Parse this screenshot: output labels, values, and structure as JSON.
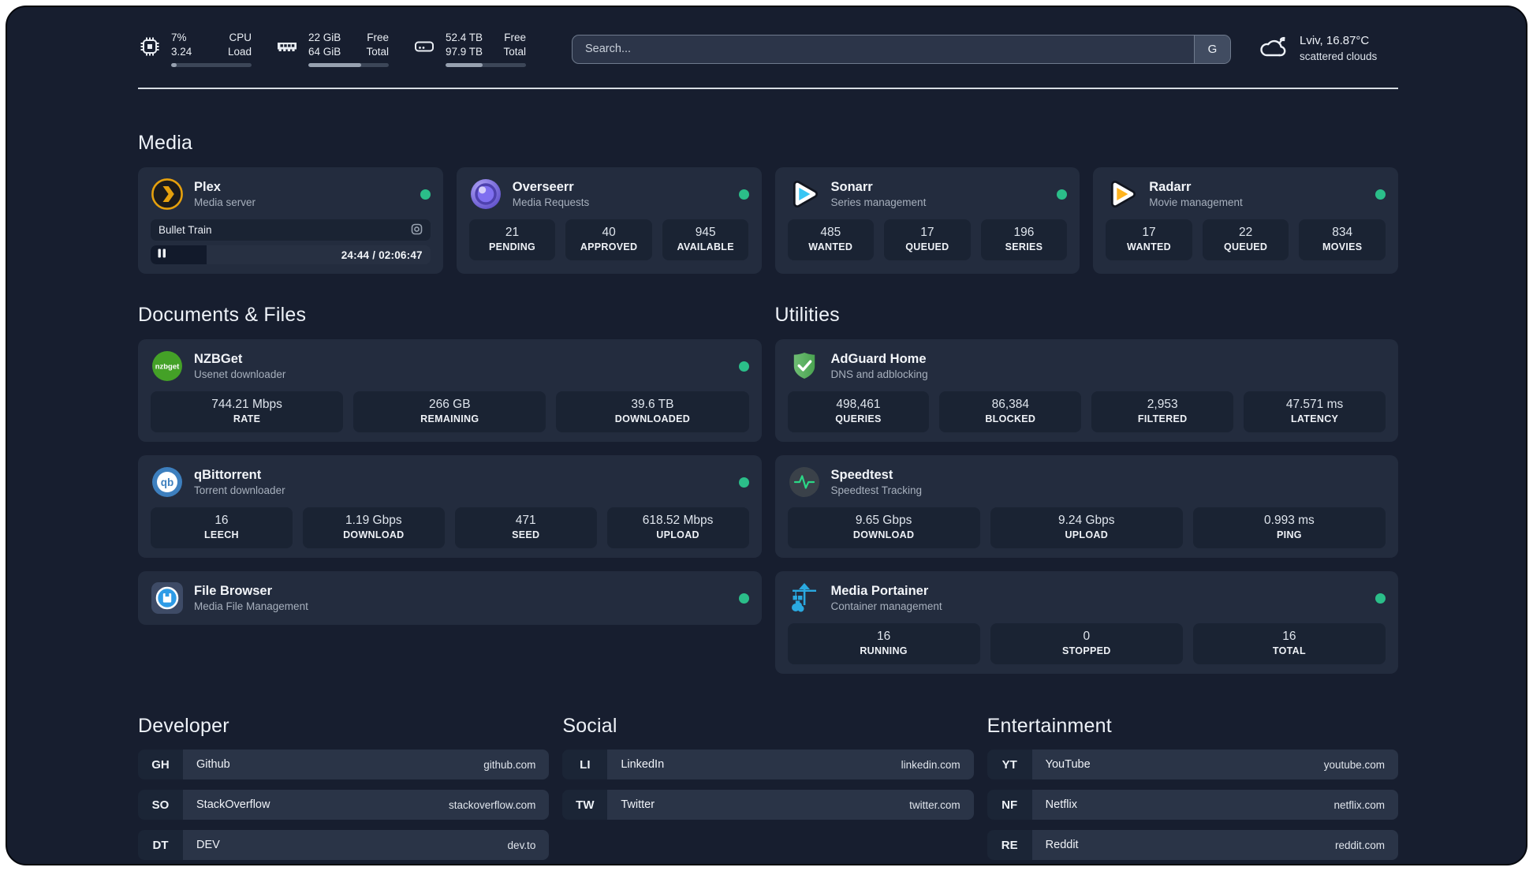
{
  "header": {
    "metrics": [
      {
        "icon": "cpu-icon",
        "col1": [
          "7%",
          "3.24"
        ],
        "col2": [
          "CPU",
          "Load"
        ],
        "progress": 7
      },
      {
        "icon": "ram-icon",
        "col1": [
          "22 GiB",
          "64 GiB"
        ],
        "col2": [
          "Free",
          "Total"
        ],
        "progress": 66
      },
      {
        "icon": "disk-icon",
        "col1": [
          "52.4 TB",
          "97.9 TB"
        ],
        "col2": [
          "Free",
          "Total"
        ],
        "progress": 46
      }
    ],
    "search": {
      "placeholder": "Search...",
      "engine_button": "G"
    },
    "weather": {
      "location": "Lviv, 16.87°C",
      "condition": "scattered clouds"
    }
  },
  "sections": {
    "media": {
      "title": "Media",
      "cards": [
        {
          "icon": "plex-icon",
          "name": "Plex",
          "subtitle": "Media server",
          "online": true,
          "player": {
            "title": "Bullet Train",
            "time": "24:44 / 02:06:47",
            "progress_percent": 20
          }
        },
        {
          "icon": "overseerr-icon",
          "name": "Overseerr",
          "subtitle": "Media Requests",
          "online": true,
          "stats": [
            {
              "value": "21",
              "label": "PENDING"
            },
            {
              "value": "40",
              "label": "APPROVED"
            },
            {
              "value": "945",
              "label": "AVAILABLE"
            }
          ]
        },
        {
          "icon": "sonarr-icon",
          "name": "Sonarr",
          "subtitle": "Series management",
          "online": true,
          "stats": [
            {
              "value": "485",
              "label": "WANTED"
            },
            {
              "value": "17",
              "label": "QUEUED"
            },
            {
              "value": "196",
              "label": "SERIES"
            }
          ]
        },
        {
          "icon": "radarr-icon",
          "name": "Radarr",
          "subtitle": "Movie management",
          "online": true,
          "stats": [
            {
              "value": "17",
              "label": "WANTED"
            },
            {
              "value": "22",
              "label": "QUEUED"
            },
            {
              "value": "834",
              "label": "MOVIES"
            }
          ]
        }
      ]
    },
    "documents": {
      "title": "Documents & Files",
      "cards": [
        {
          "icon": "nzbget-icon",
          "name": "NZBGet",
          "subtitle": "Usenet downloader",
          "online": true,
          "stats": [
            {
              "value": "744.21 Mbps",
              "label": "RATE"
            },
            {
              "value": "266 GB",
              "label": "REMAINING"
            },
            {
              "value": "39.6 TB",
              "label": "DOWNLOADED"
            }
          ]
        },
        {
          "icon": "qbittorrent-icon",
          "name": "qBittorrent",
          "subtitle": "Torrent downloader",
          "online": true,
          "stats": [
            {
              "value": "16",
              "label": "LEECH"
            },
            {
              "value": "1.19 Gbps",
              "label": "DOWNLOAD"
            },
            {
              "value": "471",
              "label": "SEED"
            },
            {
              "value": "618.52 Mbps",
              "label": "UPLOAD"
            }
          ]
        },
        {
          "icon": "filebrowser-icon",
          "name": "File Browser",
          "subtitle": "Media File Management",
          "online": true
        }
      ]
    },
    "utilities": {
      "title": "Utilities",
      "cards": [
        {
          "icon": "adguard-icon",
          "name": "AdGuard Home",
          "subtitle": "DNS and adblocking",
          "online": false,
          "stats": [
            {
              "value": "498,461",
              "label": "QUERIES"
            },
            {
              "value": "86,384",
              "label": "BLOCKED"
            },
            {
              "value": "2,953",
              "label": "FILTERED"
            },
            {
              "value": "47.571 ms",
              "label": "LATENCY"
            }
          ]
        },
        {
          "icon": "speedtest-icon",
          "name": "Speedtest",
          "subtitle": "Speedtest Tracking",
          "online": false,
          "stats": [
            {
              "value": "9.65 Gbps",
              "label": "DOWNLOAD"
            },
            {
              "value": "9.24 Gbps",
              "label": "UPLOAD"
            },
            {
              "value": "0.993 ms",
              "label": "PING"
            }
          ]
        },
        {
          "icon": "portainer-icon",
          "name": "Media Portainer",
          "subtitle": "Container management",
          "online": true,
          "stats": [
            {
              "value": "16",
              "label": "RUNNING"
            },
            {
              "value": "0",
              "label": "STOPPED"
            },
            {
              "value": "16",
              "label": "TOTAL"
            }
          ]
        }
      ]
    },
    "links": [
      {
        "title": "Developer",
        "items": [
          {
            "abbr": "GH",
            "name": "Github",
            "url": "github.com"
          },
          {
            "abbr": "SO",
            "name": "StackOverflow",
            "url": "stackoverflow.com"
          },
          {
            "abbr": "DT",
            "name": "DEV",
            "url": "dev.to"
          }
        ]
      },
      {
        "title": "Social",
        "items": [
          {
            "abbr": "LI",
            "name": "LinkedIn",
            "url": "linkedin.com"
          },
          {
            "abbr": "TW",
            "name": "Twitter",
            "url": "twitter.com"
          }
        ]
      },
      {
        "title": "Entertainment",
        "items": [
          {
            "abbr": "YT",
            "name": "YouTube",
            "url": "youtube.com"
          },
          {
            "abbr": "NF",
            "name": "Netflix",
            "url": "netflix.com"
          },
          {
            "abbr": "RE",
            "name": "Reddit",
            "url": "reddit.com"
          }
        ]
      }
    ]
  },
  "colors": {
    "status_online": "#2BBE89",
    "plex": "#E5A00D",
    "overseerr": "#7F6FF0",
    "sonarr": "#38C6F4",
    "radarr": "#FFB41F",
    "nzbget": "#44A127",
    "qbittorrent": "#3D7FBE",
    "filebrowser": "#2E9BE6",
    "adguard": "#5CB463",
    "speedtest_pulse": "#2BD786",
    "portainer": "#2AA9E0"
  }
}
